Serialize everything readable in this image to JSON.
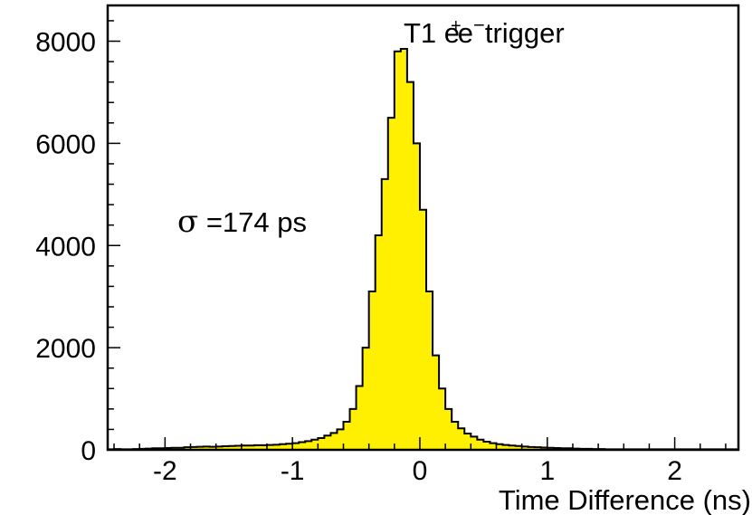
{
  "chart_data": {
    "type": "bar",
    "style": "histogram",
    "title": "",
    "xlabel": "Time Difference (ns)",
    "ylabel": "",
    "xlim": [
      -2.45,
      2.5
    ],
    "ylim": [
      0,
      8700
    ],
    "x_ticks": [
      -2,
      -1,
      0,
      1,
      2
    ],
    "x_tick_labels": [
      "-2",
      "-1",
      "0",
      "1",
      "2"
    ],
    "y_ticks": [
      0,
      2000,
      4000,
      6000,
      8000
    ],
    "y_tick_labels": [
      "0",
      "2000",
      "4000",
      "6000",
      "8000"
    ],
    "grid": false,
    "fill_color": "#ffef00",
    "line_color": "#000000",
    "annotations": {
      "trigger": "T1 e+e−trigger",
      "trigger_base": "T1 e",
      "trigger_sup_plus": "+",
      "trigger_e": "e",
      "trigger_sup_minus": "−",
      "trigger_tail": "trigger",
      "sigma_symbol": "σ",
      "sigma_value": " =174 ps"
    },
    "bin_edges_start": -2.45,
    "bin_width": 0.05,
    "values": [
      10,
      15,
      10,
      12,
      15,
      20,
      25,
      30,
      30,
      35,
      40,
      40,
      50,
      55,
      60,
      65,
      60,
      65,
      70,
      75,
      80,
      85,
      85,
      90,
      90,
      95,
      100,
      110,
      120,
      130,
      150,
      170,
      200,
      230,
      280,
      330,
      400,
      550,
      800,
      1250,
      2000,
      3100,
      4200,
      5300,
      6500,
      7800,
      7850,
      7200,
      6000,
      4700,
      3100,
      1850,
      1200,
      800,
      550,
      420,
      320,
      260,
      200,
      160,
      130,
      110,
      95,
      85,
      75,
      65,
      55,
      50,
      45,
      40,
      35,
      30,
      30,
      25,
      20,
      20,
      15,
      15,
      10,
      10,
      10,
      10,
      10,
      10,
      10,
      10,
      10,
      10,
      10,
      10,
      10,
      10,
      10,
      10,
      10,
      10,
      10,
      10,
      10
    ]
  }
}
